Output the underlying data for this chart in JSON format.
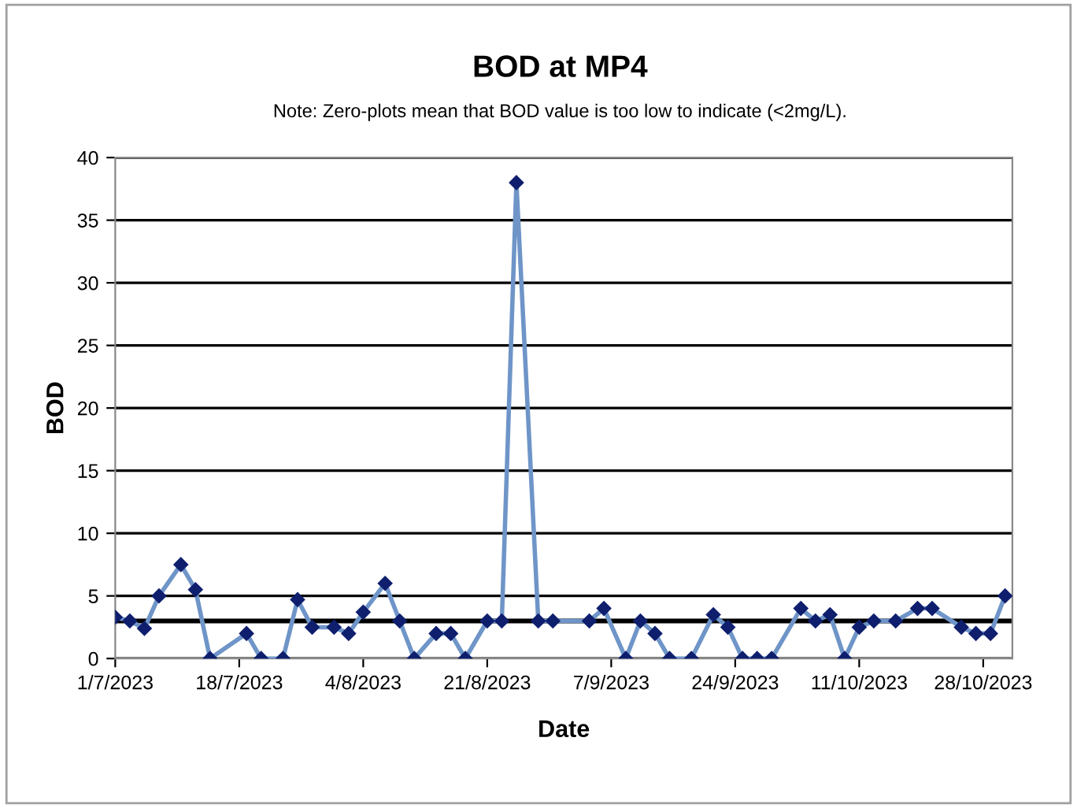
{
  "chart_data": {
    "type": "line",
    "title": "BOD at MP4",
    "subtitle": "Note: Zero-plots mean that BOD value is too low to indicate (<2mg/L).",
    "xlabel": "Date",
    "ylabel": "BOD",
    "x": [
      "2023-07-01",
      "2023-07-03",
      "2023-07-05",
      "2023-07-07",
      "2023-07-10",
      "2023-07-12",
      "2023-07-14",
      "2023-07-19",
      "2023-07-21",
      "2023-07-24",
      "2023-07-26",
      "2023-07-28",
      "2023-07-31",
      "2023-08-02",
      "2023-08-04",
      "2023-08-07",
      "2023-08-09",
      "2023-08-11",
      "2023-08-14",
      "2023-08-16",
      "2023-08-18",
      "2023-08-21",
      "2023-08-23",
      "2023-08-25",
      "2023-08-28",
      "2023-08-30",
      "2023-09-04",
      "2023-09-06",
      "2023-09-09",
      "2023-09-11",
      "2023-09-13",
      "2023-09-15",
      "2023-09-18",
      "2023-09-21",
      "2023-09-23",
      "2023-09-25",
      "2023-09-27",
      "2023-09-29",
      "2023-10-03",
      "2023-10-05",
      "2023-10-07",
      "2023-10-09",
      "2023-10-11",
      "2023-10-13",
      "2023-10-16",
      "2023-10-19",
      "2023-10-21",
      "2023-10-25",
      "2023-10-27",
      "2023-10-29",
      "2023-10-31"
    ],
    "series": [
      {
        "color": "#6f95c8",
        "values": [
          3.3,
          3,
          2.4,
          5,
          7.5,
          5.5,
          0,
          2,
          0,
          0,
          4.7,
          2.5,
          2.5,
          2,
          3.7,
          6,
          3,
          0,
          2,
          2,
          0,
          3,
          3,
          38,
          3,
          3,
          3,
          4,
          0,
          3,
          2,
          0,
          0,
          3.5,
          2.5,
          0,
          0,
          0,
          4,
          3,
          3.5,
          0,
          2.5,
          3,
          3,
          4,
          4,
          2.5,
          2,
          2,
          5
        ]
      }
    ],
    "xlim": [
      "2023-07-01",
      "2023-11-01"
    ],
    "xticks": [
      {
        "value": "2023-07-01",
        "label": "1/7/2023"
      },
      {
        "value": "2023-07-18",
        "label": "18/7/2023"
      },
      {
        "value": "2023-08-04",
        "label": "4/8/2023"
      },
      {
        "value": "2023-08-21",
        "label": "21/8/2023"
      },
      {
        "value": "2023-09-07",
        "label": "7/9/2023"
      },
      {
        "value": "2023-09-24",
        "label": "24/9/2023"
      },
      {
        "value": "2023-10-11",
        "label": "11/10/2023"
      },
      {
        "value": "2023-10-28",
        "label": "28/10/2023"
      }
    ],
    "ylim": [
      0,
      40
    ],
    "yticks": [
      0,
      5,
      10,
      15,
      20,
      25,
      30,
      35,
      40
    ],
    "grid": "y",
    "marker": "diamond",
    "line_style": "solid",
    "legend": false,
    "ref_lines": [
      {
        "axis": "y",
        "value": 3,
        "color": "#000000"
      }
    ]
  }
}
